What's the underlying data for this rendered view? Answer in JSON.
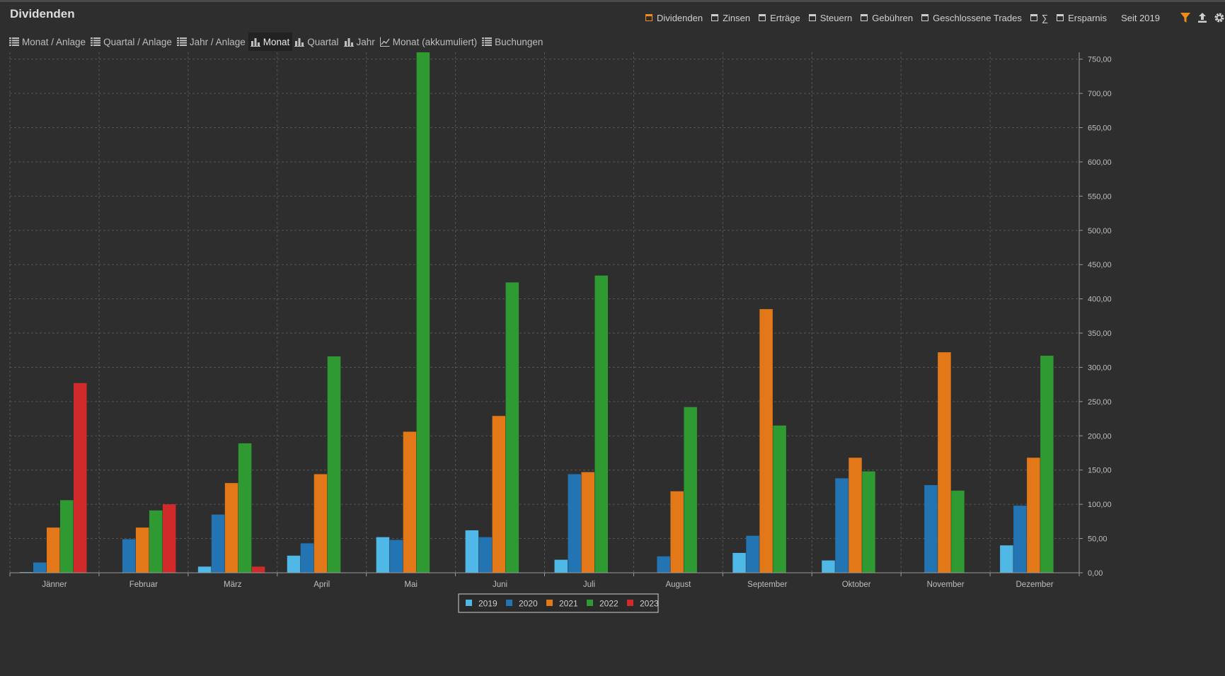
{
  "header": {
    "title": "Dividenden",
    "filters": [
      {
        "label": "Dividenden",
        "checked": true
      },
      {
        "label": "Zinsen",
        "checked": false
      },
      {
        "label": "Erträge",
        "checked": false
      },
      {
        "label": "Steuern",
        "checked": false
      },
      {
        "label": "Gebühren",
        "checked": false
      },
      {
        "label": "Geschlossene Trades",
        "checked": false
      },
      {
        "label": "∑",
        "checked": false
      },
      {
        "label": "Ersparnis",
        "checked": false
      }
    ],
    "since_label": "Seit 2019",
    "icons": [
      "filter-icon",
      "export-icon",
      "gear-icon"
    ]
  },
  "tabs": [
    {
      "label": "Monat / Anlage",
      "icon": "list-icon",
      "active": false
    },
    {
      "label": "Quartal / Anlage",
      "icon": "list-icon",
      "active": false
    },
    {
      "label": "Jahr / Anlage",
      "icon": "list-icon",
      "active": false
    },
    {
      "label": "Monat",
      "icon": "bar-chart-icon",
      "active": true
    },
    {
      "label": "Quartal",
      "icon": "bar-chart-icon",
      "active": false
    },
    {
      "label": "Jahr",
      "icon": "bar-chart-icon",
      "active": false
    },
    {
      "label": "Monat (akkumuliert)",
      "icon": "line-chart-icon",
      "active": false
    },
    {
      "label": "Buchungen",
      "icon": "list-icon",
      "active": false
    }
  ],
  "colors": {
    "accent": "#f08c1a",
    "series": [
      "#4fb8e6",
      "#2374b3",
      "#e27818",
      "#2f9a32",
      "#d02a2a"
    ],
    "grid": "#555555",
    "background": "#2e2e2e"
  },
  "chart_data": {
    "type": "bar",
    "categories": [
      "Jänner",
      "Februar",
      "März",
      "April",
      "Mai",
      "Juni",
      "Juli",
      "August",
      "September",
      "Oktober",
      "November",
      "Dezember"
    ],
    "series": [
      {
        "name": "2019",
        "values": [
          1,
          0,
          9,
          25,
          52,
          62,
          19,
          0,
          29,
          18,
          0,
          40
        ]
      },
      {
        "name": "2020",
        "values": [
          15,
          49,
          85,
          43,
          48,
          52,
          144,
          24,
          54,
          138,
          128,
          98
        ]
      },
      {
        "name": "2021",
        "values": [
          66,
          66,
          131,
          144,
          206,
          229,
          147,
          119,
          385,
          168,
          322,
          168
        ]
      },
      {
        "name": "2022",
        "values": [
          106,
          91,
          189,
          316,
          760,
          424,
          434,
          242,
          215,
          148,
          120,
          317
        ]
      },
      {
        "name": "2023",
        "values": [
          277,
          100,
          9,
          0,
          0,
          0,
          0,
          0,
          0,
          0,
          0,
          0
        ]
      }
    ],
    "ylim": [
      0,
      760
    ],
    "yticks": [
      0,
      50,
      100,
      150,
      200,
      250,
      300,
      350,
      400,
      450,
      500,
      550,
      600,
      650,
      700,
      750
    ],
    "ytick_labels": [
      "0,00",
      "50,00",
      "100,00",
      "150,00",
      "200,00",
      "250,00",
      "300,00",
      "350,00",
      "400,00",
      "450,00",
      "500,00",
      "550,00",
      "600,00",
      "650,00",
      "700,00",
      "750,00"
    ],
    "yaxis_position": "right",
    "grid": true,
    "legend_position": "bottom-center"
  }
}
